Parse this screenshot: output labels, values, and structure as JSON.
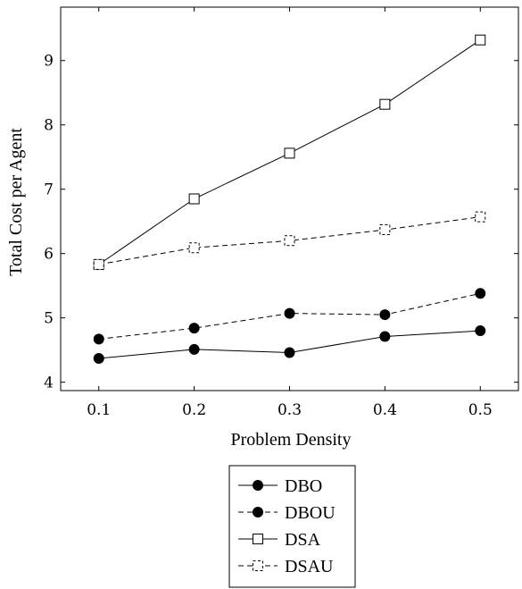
{
  "chart_data": {
    "type": "line",
    "title": "",
    "xlabel": "Problem Density",
    "ylabel": "Total Cost per Agent",
    "x": [
      0.1,
      0.2,
      0.3,
      0.4,
      0.5
    ],
    "xticks": [
      "0.1",
      "0.2",
      "0.3",
      "0.4",
      "0.5"
    ],
    "yticks": [
      "4",
      "5",
      "6",
      "7",
      "8",
      "9"
    ],
    "xlim": [
      0.06,
      0.54
    ],
    "ylim": [
      3.87,
      9.83
    ],
    "grid": false,
    "legend_position": "below",
    "series": [
      {
        "name": "DBO",
        "values": [
          4.37,
          4.51,
          4.46,
          4.71,
          4.8
        ],
        "line": "solid",
        "marker": "filled-circle"
      },
      {
        "name": "DBOU",
        "values": [
          4.67,
          4.84,
          5.07,
          5.05,
          5.38
        ],
        "line": "dashed",
        "marker": "filled-circle"
      },
      {
        "name": "DSA",
        "values": [
          5.83,
          6.85,
          7.56,
          8.32,
          9.32
        ],
        "line": "solid",
        "marker": "open-square"
      },
      {
        "name": "DSAU",
        "values": [
          5.83,
          6.09,
          6.2,
          6.37,
          6.57
        ],
        "line": "dashed",
        "marker": "open-square-dashed"
      }
    ]
  }
}
